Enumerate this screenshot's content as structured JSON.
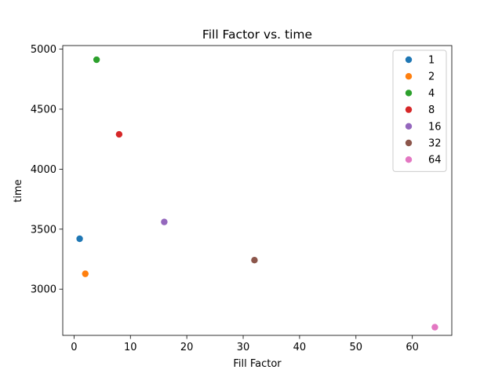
{
  "chart_data": {
    "type": "scatter",
    "title": "Fill Factor vs. time",
    "xlabel": "Fill Factor",
    "ylabel": "time",
    "xlim": [
      -2,
      67
    ],
    "ylim": [
      2615,
      5030
    ],
    "xticks": [
      0,
      10,
      20,
      30,
      40,
      50,
      60
    ],
    "yticks": [
      3000,
      3500,
      4000,
      4500,
      5000
    ],
    "grid": false,
    "legend_position": "top-right",
    "series": [
      {
        "name": "1",
        "color": "#1f77b4",
        "x": 1,
        "y": 3420
      },
      {
        "name": "2",
        "color": "#ff7f0e",
        "x": 2,
        "y": 3128
      },
      {
        "name": "4",
        "color": "#2ca02c",
        "x": 4,
        "y": 4912
      },
      {
        "name": "8",
        "color": "#d62728",
        "x": 8,
        "y": 4290
      },
      {
        "name": "16",
        "color": "#9467bd",
        "x": 16,
        "y": 3560
      },
      {
        "name": "32",
        "color": "#8c564b",
        "x": 32,
        "y": 3242
      },
      {
        "name": "64",
        "color": "#e377c2",
        "x": 64,
        "y": 2683
      }
    ]
  }
}
